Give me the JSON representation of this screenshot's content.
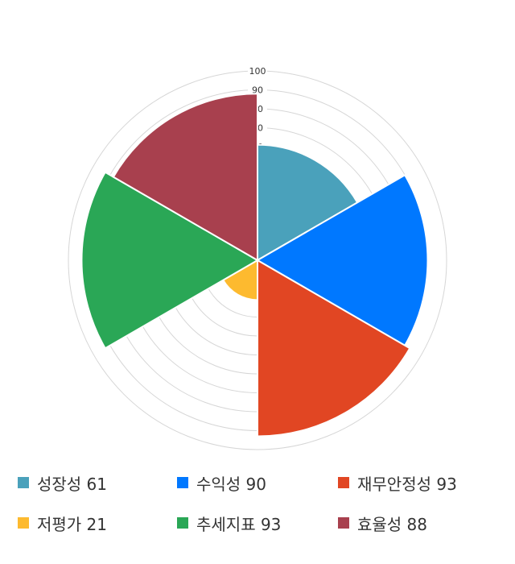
{
  "chart_data": {
    "type": "polar-area",
    "categories": [
      "성장성",
      "수익성",
      "재무안정성",
      "저평가",
      "추세지표",
      "효율성"
    ],
    "values": [
      61,
      90,
      93,
      21,
      93,
      88
    ],
    "colors": [
      "#4aa1bb",
      "#0078ff",
      "#e14623",
      "#fdba2f",
      "#2aa756",
      "#a8404e"
    ],
    "order_clockwise_from_top": [
      "성장성",
      "수익성",
      "재무안정성",
      "저평가",
      "추세지표",
      "효율성"
    ],
    "rlim": [
      0,
      100
    ],
    "ticks": [
      10,
      20,
      30,
      40,
      50,
      60,
      70,
      80,
      90,
      100
    ],
    "grid": true,
    "legend_position": "bottom",
    "legend": [
      "성장성 61",
      "수익성 90",
      "재무안정성 93",
      "저평가 21",
      "추세지표 93",
      "효율성 88"
    ]
  }
}
